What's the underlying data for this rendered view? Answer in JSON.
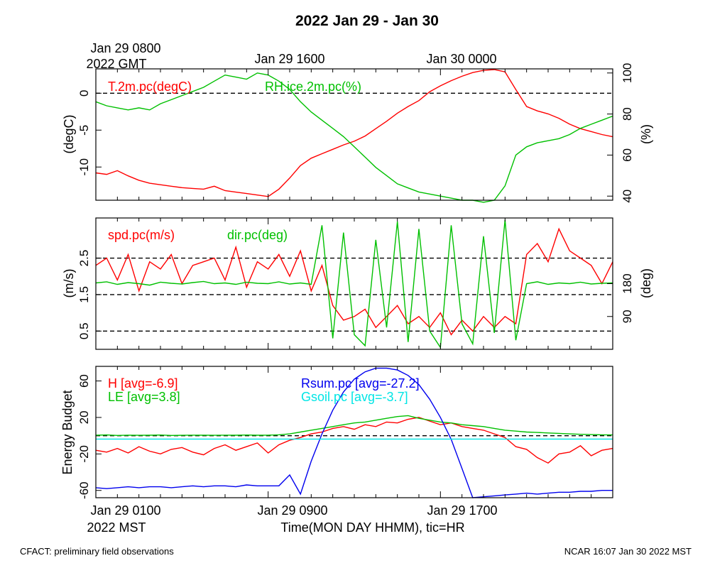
{
  "title": "2022 Jan 29 - Jan 30",
  "top_time_labels": {
    "first_line1": "Jan 29 0800",
    "first_line2": "2022 GMT",
    "second": "Jan 29 1600",
    "third": "Jan 30 0000"
  },
  "bottom_time_labels": {
    "first_line1": "Jan 29 0100",
    "first_line2": "2022 MST",
    "second": "Jan 29 0900",
    "third": "Jan 29 1700"
  },
  "x_axis_title": "Time(MON DAY HHMM), tic=HR",
  "footer_left": "CFACT: preliminary field observations",
  "footer_right": "NCAR 16:07 Jan 30 2022 MST",
  "colors": {
    "red": "#ff0000",
    "green": "#00c000",
    "blue": "#0000ee",
    "cyan": "#00e5e5",
    "black": "#000000"
  },
  "chart_data": [
    {
      "type": "line",
      "panel": "temperature-humidity",
      "x_unit": "hours since Jan 29 0100 MST",
      "xlim": [
        0,
        24
      ],
      "ylabel": "(degC)",
      "ylim": [
        -14.5,
        3.3
      ],
      "yticks": [
        "0",
        "-5",
        "-10"
      ],
      "ytick_values": [
        0,
        -5,
        -10
      ],
      "y2label": "(%)",
      "y2lim": [
        38,
        102
      ],
      "y2ticks": [
        "100",
        "80",
        "60",
        "40"
      ],
      "y2tick_values": [
        100,
        80,
        60,
        40
      ],
      "reference_lines": [
        0
      ],
      "series": [
        {
          "name": "T.2m.pc(degC)",
          "color": "red",
          "axis": "left",
          "x": [
            0,
            0.5,
            1,
            1.5,
            2,
            2.5,
            3,
            3.5,
            4,
            4.5,
            5,
            5.5,
            6,
            6.5,
            7,
            7.5,
            8,
            8.5,
            9,
            9.5,
            10,
            10.5,
            11,
            11.5,
            12,
            12.5,
            13,
            13.5,
            14,
            14.5,
            15,
            15.5,
            16,
            16.5,
            17,
            17.5,
            18,
            18.5,
            19,
            19.5,
            20,
            20.5,
            21,
            21.5,
            22,
            22.5,
            23,
            23.5,
            24
          ],
          "values": [
            -10.8,
            -11.0,
            -10.5,
            -11.2,
            -11.8,
            -12.2,
            -12.4,
            -12.6,
            -12.8,
            -12.9,
            -13.0,
            -12.6,
            -13.2,
            -13.4,
            -13.6,
            -13.8,
            -14.0,
            -13.0,
            -11.5,
            -9.8,
            -8.8,
            -8.2,
            -7.6,
            -7.0,
            -6.5,
            -5.8,
            -4.8,
            -3.8,
            -2.7,
            -1.8,
            -1.0,
            0.2,
            1.0,
            1.7,
            2.3,
            2.8,
            3.1,
            3.2,
            2.9,
            0.5,
            -1.8,
            -2.4,
            -2.8,
            -3.4,
            -4.2,
            -4.8,
            -5.2,
            -5.6,
            -5.9
          ]
        },
        {
          "name": "RH.ice.2m.pc(%)",
          "color": "green",
          "axis": "right",
          "x": [
            0,
            0.5,
            1,
            1.5,
            2,
            2.5,
            3,
            3.5,
            4,
            4.5,
            5,
            5.5,
            6,
            6.5,
            7,
            7.5,
            8,
            8.5,
            9,
            9.5,
            10,
            10.5,
            11,
            11.5,
            12,
            12.5,
            13,
            13.5,
            14,
            14.5,
            15,
            15.5,
            16,
            16.5,
            17,
            17.5,
            18,
            18.5,
            19,
            19.5,
            20,
            20.5,
            21,
            21.5,
            22,
            22.5,
            23,
            23.5,
            24
          ],
          "values": [
            86,
            84,
            83,
            82,
            83,
            82,
            85,
            87,
            89,
            91,
            93,
            96,
            99,
            98,
            97,
            100,
            99,
            96,
            92,
            86,
            81,
            77,
            73,
            69,
            64,
            59,
            54,
            50,
            46,
            44,
            42,
            41,
            40,
            39,
            38,
            38,
            37,
            38,
            45,
            60,
            64,
            66,
            67,
            68,
            70,
            73,
            75,
            77,
            79
          ]
        }
      ]
    },
    {
      "type": "line",
      "panel": "wind",
      "x_unit": "hours since Jan 29 0100 MST",
      "xlim": [
        0,
        24
      ],
      "ylabel": "(m/s)",
      "ylim": [
        0.0,
        3.6
      ],
      "yticks": [
        "2.5",
        "1.5",
        "0.5"
      ],
      "ytick_values": [
        2.5,
        1.5,
        0.5
      ],
      "y2label": "(deg)",
      "y2lim": [
        0,
        360
      ],
      "y2ticks": [
        "180",
        "90"
      ],
      "y2tick_values": [
        180,
        90
      ],
      "reference_lines": [
        2.5,
        1.5,
        0.5
      ],
      "series": [
        {
          "name": "spd.pc(m/s)",
          "color": "red",
          "axis": "left",
          "x": [
            0,
            0.5,
            1,
            1.5,
            2,
            2.5,
            3,
            3.5,
            4,
            4.5,
            5,
            5.5,
            6,
            6.5,
            7,
            7.5,
            8,
            8.5,
            9,
            9.5,
            10,
            10.5,
            11,
            11.5,
            12,
            12.5,
            13,
            13.5,
            14,
            14.5,
            15,
            15.5,
            16,
            16.5,
            17,
            17.5,
            18,
            18.5,
            19,
            19.5,
            20,
            20.5,
            21,
            21.5,
            22,
            22.5,
            23,
            23.5,
            24
          ],
          "values": [
            2.3,
            2.5,
            1.9,
            2.6,
            1.6,
            2.4,
            2.2,
            2.6,
            1.8,
            2.3,
            2.4,
            2.5,
            1.9,
            2.8,
            1.7,
            2.4,
            2.2,
            2.6,
            2.0,
            2.7,
            1.6,
            2.3,
            1.2,
            0.8,
            0.9,
            1.1,
            0.6,
            0.9,
            1.2,
            0.7,
            0.9,
            0.6,
            1.0,
            0.4,
            0.8,
            0.5,
            0.9,
            0.6,
            0.9,
            0.7,
            2.6,
            2.9,
            2.4,
            3.3,
            2.7,
            2.5,
            2.3,
            1.8,
            2.4
          ]
        },
        {
          "name": "dir.pc(deg)",
          "color": "green",
          "axis": "right",
          "x": [
            0,
            0.5,
            1,
            1.5,
            2,
            2.5,
            3,
            3.5,
            4,
            4.5,
            5,
            5.5,
            6,
            6.5,
            7,
            7.5,
            8,
            8.5,
            9,
            9.5,
            10,
            10.5,
            11,
            11.5,
            12,
            12.5,
            13,
            13.5,
            14,
            14.5,
            15,
            15.5,
            16,
            16.5,
            17,
            17.5,
            18,
            18.5,
            19,
            19.5,
            20,
            20.5,
            21,
            21.5,
            22,
            22.5,
            23,
            23.5,
            24
          ],
          "values": [
            182,
            185,
            178,
            183,
            180,
            176,
            184,
            181,
            179,
            183,
            186,
            180,
            182,
            178,
            184,
            181,
            180,
            185,
            179,
            182,
            178,
            340,
            30,
            320,
            40,
            10,
            300,
            60,
            350,
            20,
            330,
            50,
            5,
            340,
            70,
            15,
            310,
            45,
            355,
            25,
            180,
            185,
            178,
            182,
            180,
            184,
            179,
            181,
            182
          ]
        }
      ]
    },
    {
      "type": "line",
      "panel": "energy-budget",
      "x_unit": "hours since Jan 29 0100 MST",
      "xlim": [
        0,
        24
      ],
      "ylabel": "Energy Budget",
      "ylim": [
        -68,
        76
      ],
      "yticks": [
        "60",
        "20",
        "-20",
        "-60"
      ],
      "ytick_values": [
        60,
        20,
        -20,
        -60
      ],
      "reference_lines": [
        0
      ],
      "series": [
        {
          "name": "H [avg=-6.9]",
          "color": "red",
          "x": [
            0,
            0.5,
            1,
            1.5,
            2,
            2.5,
            3,
            3.5,
            4,
            4.5,
            5,
            5.5,
            6,
            6.5,
            7,
            7.5,
            8,
            8.5,
            9,
            9.5,
            10,
            10.5,
            11,
            11.5,
            12,
            12.5,
            13,
            13.5,
            14,
            14.5,
            15,
            15.5,
            16,
            16.5,
            17,
            17.5,
            18,
            18.5,
            19,
            19.5,
            20,
            20.5,
            21,
            21.5,
            22,
            22.5,
            23,
            23.5,
            24
          ],
          "values": [
            -16,
            -18,
            -14,
            -19,
            -12,
            -17,
            -20,
            -15,
            -13,
            -18,
            -21,
            -14,
            -10,
            -16,
            -12,
            -8,
            -19,
            -10,
            -5,
            -2,
            2,
            4,
            8,
            10,
            7,
            12,
            10,
            15,
            14,
            18,
            20,
            16,
            12,
            14,
            10,
            8,
            6,
            2,
            -2,
            -12,
            -15,
            -24,
            -30,
            -20,
            -18,
            -11,
            -22,
            -16,
            -14
          ]
        },
        {
          "name": "LE [avg=3.8]",
          "color": "green",
          "x": [
            0,
            0.5,
            1,
            1.5,
            2,
            2.5,
            3,
            3.5,
            4,
            4.5,
            5,
            5.5,
            6,
            6.5,
            7,
            7.5,
            8,
            8.5,
            9,
            9.5,
            10,
            10.5,
            11,
            11.5,
            12,
            12.5,
            13,
            13.5,
            14,
            14.5,
            15,
            15.5,
            16,
            16.5,
            17,
            17.5,
            18,
            18.5,
            19,
            19.5,
            20,
            20.5,
            21,
            21.5,
            22,
            22.5,
            23,
            23.5,
            24
          ],
          "values": [
            0.5,
            0.8,
            0.3,
            0.6,
            0.4,
            0.5,
            0.7,
            0.3,
            0.4,
            0.6,
            0.5,
            0.4,
            0.6,
            0.5,
            0.7,
            0.5,
            0.6,
            1.0,
            2,
            4,
            6,
            8,
            10,
            12,
            14,
            15,
            17,
            19,
            21,
            22,
            19,
            17,
            15,
            14,
            12,
            11,
            10,
            8,
            6,
            5,
            4,
            3.5,
            3,
            2.5,
            2,
            1.5,
            1.2,
            1,
            0.8
          ]
        },
        {
          "name": "Rsum.pc [avg=-27.2]",
          "color": "blue",
          "x": [
            0,
            0.5,
            1,
            1.5,
            2,
            2.5,
            3,
            3.5,
            4,
            4.5,
            5,
            5.5,
            6,
            6.5,
            7,
            7.5,
            8,
            8.5,
            9,
            9.5,
            10,
            10.5,
            11,
            11.5,
            12,
            12.5,
            13,
            13.5,
            14,
            14.5,
            15,
            15.5,
            16,
            16.5,
            17,
            17.5,
            18,
            18.5,
            19,
            19.5,
            20,
            20.5,
            21,
            21.5,
            22,
            22.5,
            23,
            23.5,
            24
          ],
          "values": [
            -57,
            -58,
            -57,
            -56,
            -57,
            -56,
            -56,
            -57,
            -56,
            -55,
            -56,
            -55,
            -55,
            -56,
            -54,
            -55,
            -55,
            -55,
            -43,
            -64,
            -28,
            2,
            28,
            48,
            62,
            70,
            74,
            74,
            72,
            66,
            56,
            40,
            20,
            -4,
            -36,
            -68,
            -67,
            -66,
            -65,
            -64,
            -63,
            -64,
            -63,
            -62,
            -62,
            -61,
            -61,
            -60,
            -60
          ]
        },
        {
          "name": "Gsoil.pc [avg=-3.7]",
          "color": "cyan",
          "x": [
            0,
            24
          ],
          "values": [
            -3.7,
            -3.7
          ]
        }
      ]
    }
  ]
}
